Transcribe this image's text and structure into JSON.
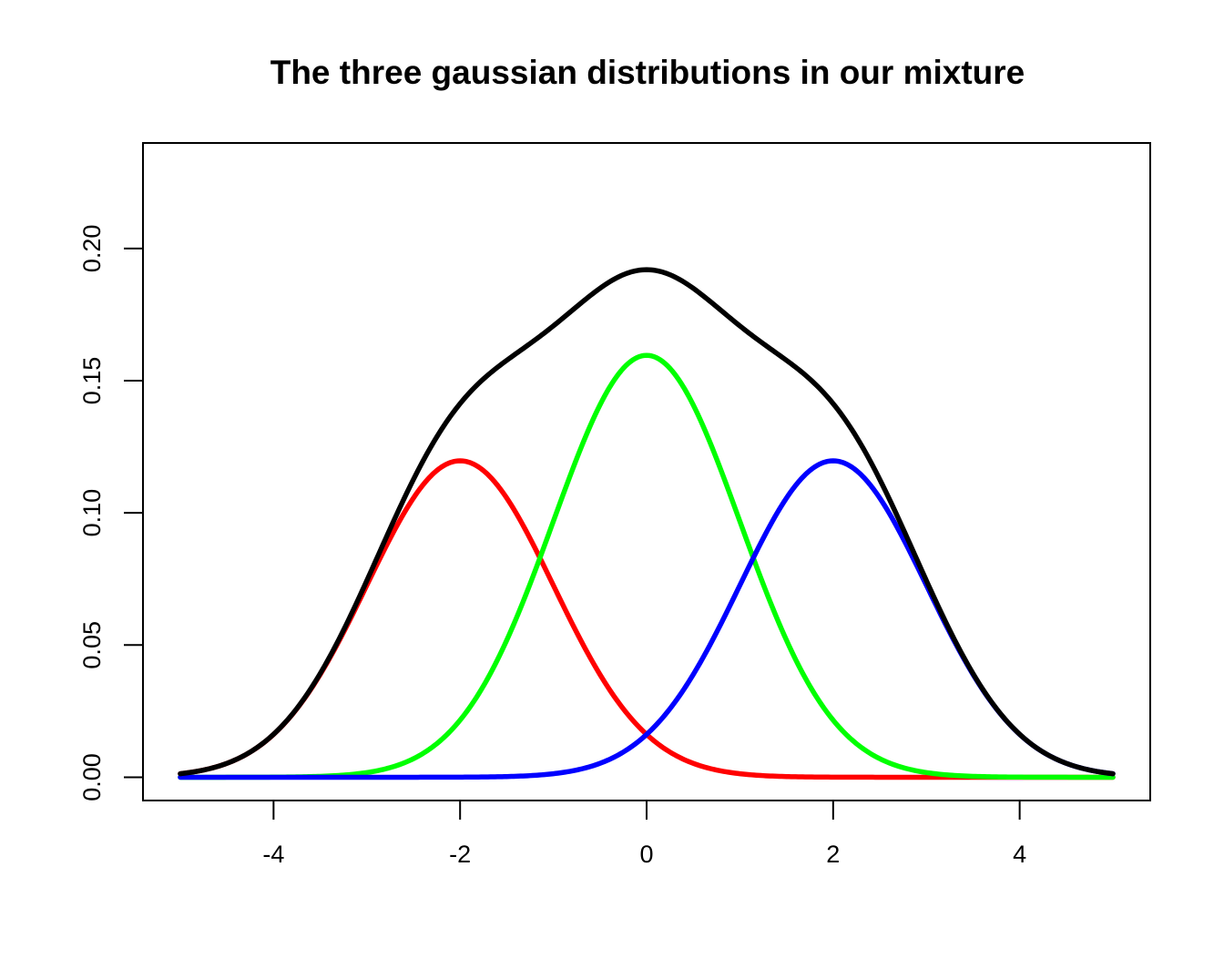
{
  "chart_data": {
    "type": "line",
    "title": "The three gaussian distributions in our mixture",
    "xlabel": "",
    "ylabel": "",
    "xlim": [
      -5.4,
      5.4
    ],
    "ylim": [
      -0.0088,
      0.2399
    ],
    "x_ticks": [
      -4,
      -2,
      0,
      2,
      4
    ],
    "x_tick_labels": [
      "-4",
      "-2",
      "0",
      "2",
      "4"
    ],
    "y_ticks": [
      0.0,
      0.05,
      0.1,
      0.15,
      0.2
    ],
    "y_tick_labels": [
      "0.00",
      "0.05",
      "0.10",
      "0.15",
      "0.20"
    ],
    "grid": false,
    "legend": "none",
    "x_domain": [
      -5,
      5
    ],
    "series": [
      {
        "color": "#ff0000",
        "x": [
          -5,
          -4.5,
          -4,
          -3.5,
          -3,
          -2.5,
          -2,
          -1.5,
          -1,
          -0.5,
          0,
          0.5,
          1,
          1.5,
          2,
          2.5,
          3,
          3.5,
          4,
          4.5,
          5
        ],
        "values": [
          0.0013,
          0.0053,
          0.0162,
          0.039,
          0.0728,
          0.1059,
          0.12,
          0.1059,
          0.0728,
          0.039,
          0.0162,
          0.0053,
          0.0013,
          0.0003,
          0.0,
          0.0,
          0.0,
          0.0,
          0.0,
          0.0,
          0.0
        ]
      },
      {
        "color": "#00ff00",
        "x": [
          -5,
          -4.5,
          -4,
          -3.5,
          -3,
          -2.5,
          -2,
          -1.5,
          -1,
          -0.5,
          0,
          0.5,
          1,
          1.5,
          2,
          2.5,
          3,
          3.5,
          4,
          4.5,
          5
        ],
        "values": [
          0.0,
          0.0,
          0.0001,
          0.0007,
          0.0036,
          0.0121,
          0.0216,
          0.0519,
          0.0971,
          0.1412,
          0.1596,
          0.1412,
          0.0971,
          0.0519,
          0.0216,
          0.0121,
          0.0036,
          0.0007,
          0.0001,
          0.0,
          0.0
        ]
      },
      {
        "color": "#0000ff",
        "x": [
          -5,
          -4.5,
          -4,
          -3.5,
          -3,
          -2.5,
          -2,
          -1.5,
          -1,
          -0.5,
          0,
          0.5,
          1,
          1.5,
          2,
          2.5,
          3,
          3.5,
          4,
          4.5,
          5
        ],
        "values": [
          0.0,
          0.0,
          0.0,
          0.0,
          0.0,
          0.0,
          0.0,
          0.0003,
          0.0013,
          0.0053,
          0.0162,
          0.039,
          0.0728,
          0.1059,
          0.12,
          0.1059,
          0.0728,
          0.039,
          0.0162,
          0.0053,
          0.0013
        ]
      },
      {
        "color": "#000000",
        "x": [
          -5,
          -4.5,
          -4,
          -3.5,
          -3,
          -2.5,
          -2,
          -1.5,
          -1,
          -0.5,
          0,
          0.5,
          1,
          1.5,
          2,
          2.5,
          3,
          3.5,
          4,
          4.5,
          5
        ],
        "values": [
          0.0013,
          0.0053,
          0.0163,
          0.0397,
          0.0764,
          0.118,
          0.1416,
          0.1581,
          0.1712,
          0.1855,
          0.192,
          0.1855,
          0.1712,
          0.1581,
          0.1416,
          0.118,
          0.0764,
          0.0397,
          0.0163,
          0.0053,
          0.0013
        ]
      }
    ]
  }
}
